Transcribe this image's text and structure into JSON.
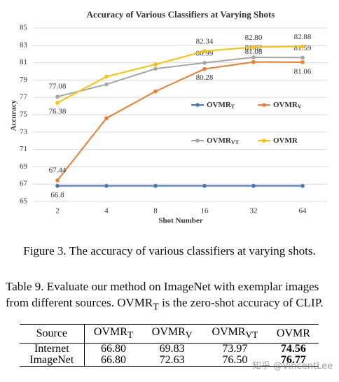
{
  "chart_data": {
    "type": "line",
    "title": "Accuracy of Various Classifiers at Varying Shots",
    "x_label": "Shot Number",
    "y_label": "Accuracy",
    "categories": [
      "2",
      "4",
      "8",
      "16",
      "32",
      "64"
    ],
    "ylim": [
      65,
      85
    ],
    "yticks": [
      65,
      67,
      69,
      71,
      73,
      75,
      77,
      79,
      81,
      83,
      85
    ],
    "grid": true,
    "series": [
      {
        "name": "OVMR",
        "name_sub": "T",
        "color": "#4472c4",
        "values": [
          66.8,
          66.8,
          66.8,
          66.8,
          66.8,
          66.8
        ],
        "value_labels": [
          "66.8",
          null,
          null,
          null,
          null,
          null
        ]
      },
      {
        "name": "OVMR",
        "name_sub": "V",
        "color": "#ed7d31",
        "values": [
          67.44,
          74.6,
          77.7,
          80.28,
          81.08,
          81.06
        ],
        "value_labels": [
          "67.44",
          null,
          null,
          "80.28",
          "81.08",
          "81.06"
        ]
      },
      {
        "name": "OVMR",
        "name_sub": "VT",
        "color": "#a5a5a5",
        "values": [
          77.08,
          78.5,
          80.3,
          80.99,
          81.62,
          81.59
        ],
        "value_labels": [
          "77.08",
          null,
          null,
          "80.99",
          "81.62",
          "81.59"
        ]
      },
      {
        "name": "OVMR",
        "name_sub": null,
        "color": "#ffc000",
        "values": [
          76.38,
          79.4,
          80.8,
          82.34,
          82.8,
          82.88
        ],
        "value_labels": [
          "76.38",
          null,
          null,
          "82.34",
          "82.80",
          "82.88"
        ]
      }
    ]
  },
  "figure_caption": "Figure 3. The accuracy of various classifiers at varying shots.",
  "table_caption": {
    "line1": "Table 9. Evaluate our method on ImageNet with exemplar images",
    "line2_before": "from different sources. ",
    "line2_name": "OVMR",
    "line2_sub": "T",
    "line2_after": " is the zero-shot accuracy of CLIP."
  },
  "table": {
    "header": [
      {
        "text": "Source",
        "sub": null
      },
      {
        "text": "OVMR",
        "sub": "T"
      },
      {
        "text": "OVMR",
        "sub": "V"
      },
      {
        "text": "OVMR",
        "sub": "VT"
      },
      {
        "text": "OVMR",
        "sub": null
      }
    ],
    "rows": [
      [
        "Internet",
        "66.80",
        "69.83",
        "73.97",
        "74.56"
      ],
      [
        "ImageNet",
        "66.80",
        "72.63",
        "76.50",
        "76.77"
      ]
    ]
  },
  "watermark": "知乎 @VincentLee"
}
